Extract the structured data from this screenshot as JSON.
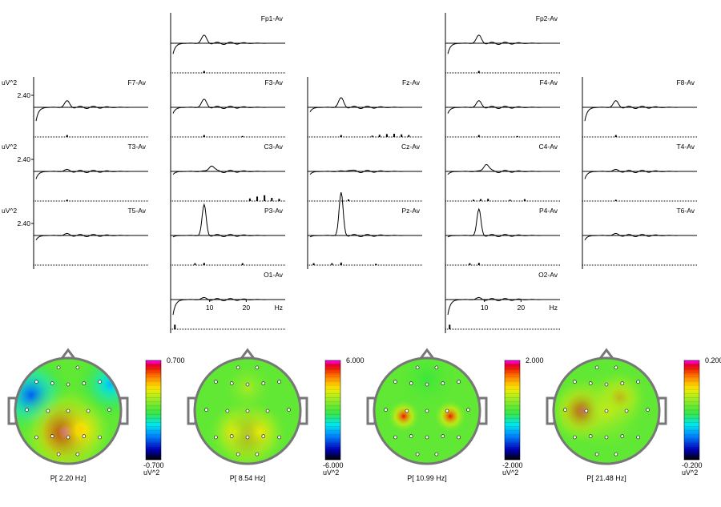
{
  "spectra": {
    "y_unit": "uV^2",
    "y_tick": "2.40",
    "x_unit": "Hz",
    "x_ticks": [
      10,
      20
    ],
    "x_range_hz": [
      0,
      30
    ],
    "channels": [
      {
        "name": "Fp1-Av",
        "peak_hz": 8.5,
        "peak": 0.25,
        "low_dip": 0.35,
        "bars": [
          [
            8.5,
            0.3
          ]
        ]
      },
      {
        "name": "Fp2-Av",
        "peak_hz": 8.5,
        "peak": 0.25,
        "low_dip": 0.35,
        "bars": [
          [
            8.5,
            0.3
          ]
        ]
      },
      {
        "name": "F7-Av",
        "peak_hz": 8.5,
        "peak": 0.2,
        "low_dip": 0.45,
        "bars": [
          [
            8.5,
            0.3
          ]
        ]
      },
      {
        "name": "F3-Av",
        "peak_hz": 8.5,
        "peak": 0.25,
        "low_dip": 0.2,
        "bars": [
          [
            8.5,
            0.3
          ],
          [
            19,
            0.15
          ]
        ]
      },
      {
        "name": "Fz-Av",
        "peak_hz": 8.5,
        "peak": 0.3,
        "low_dip": 0.15,
        "bars": [
          [
            8.5,
            0.3
          ],
          [
            17,
            0.2
          ],
          [
            19,
            0.35
          ],
          [
            21,
            0.45
          ],
          [
            23,
            0.5
          ],
          [
            25,
            0.4
          ],
          [
            27,
            0.3
          ]
        ]
      },
      {
        "name": "F4-Av",
        "peak_hz": 8.5,
        "peak": 0.2,
        "low_dip": 0.2,
        "bars": [
          [
            8.5,
            0.3
          ],
          [
            19,
            0.15
          ]
        ]
      },
      {
        "name": "F8-Av",
        "peak_hz": 8.5,
        "peak": 0.2,
        "low_dip": 0.45,
        "bars": [
          [
            8.5,
            0.3
          ]
        ]
      },
      {
        "name": "T3-Av",
        "peak_hz": 8.5,
        "peak": 0.05,
        "low_dip": 0.25,
        "bars": [
          [
            8.5,
            0.2
          ]
        ]
      },
      {
        "name": "C3-Av",
        "peak_hz": 10.5,
        "peak": 0.2,
        "low_dip": 0.1,
        "bars": [
          [
            21,
            0.4
          ],
          [
            23,
            0.7
          ],
          [
            25,
            0.9
          ],
          [
            27,
            0.5
          ],
          [
            29,
            0.35
          ]
        ]
      },
      {
        "name": "Cz-Av",
        "peak_hz": 10.5,
        "peak": 0.05,
        "low_dip": 0.1,
        "bars": [
          [
            10.5,
            0.25
          ]
        ]
      },
      {
        "name": "C4-Av",
        "peak_hz": 10.5,
        "peak": 0.25,
        "low_dip": 0.1,
        "bars": [
          [
            7,
            0.2
          ],
          [
            9,
            0.3
          ],
          [
            11,
            0.35
          ],
          [
            17,
            0.2
          ],
          [
            21,
            0.3
          ]
        ]
      },
      {
        "name": "T4-Av",
        "peak_hz": 8.5,
        "peak": 0.05,
        "low_dip": 0.25,
        "bars": [
          [
            8.5,
            0.2
          ]
        ]
      },
      {
        "name": "T5-Av",
        "peak_hz": 8.5,
        "peak": 0.05,
        "low_dip": 0.15,
        "bars": []
      },
      {
        "name": "P3-Av",
        "peak_hz": 8.5,
        "peak": 1.0,
        "low_dip": 0.05,
        "bars": [
          [
            6,
            0.3
          ],
          [
            8.5,
            0.35
          ],
          [
            19,
            0.3
          ]
        ]
      },
      {
        "name": "Pz-Av",
        "peak_hz": 8.5,
        "peak": 1.4,
        "low_dip": 0.05,
        "bars": [
          [
            1,
            0.3
          ],
          [
            6,
            0.3
          ],
          [
            8.5,
            0.4
          ],
          [
            18,
            0.2
          ]
        ]
      },
      {
        "name": "P4-Av",
        "peak_hz": 8.5,
        "peak": 0.85,
        "low_dip": 0.05,
        "bars": [
          [
            6,
            0.3
          ],
          [
            8.5,
            0.35
          ]
        ]
      },
      {
        "name": "T6-Av",
        "peak_hz": 8.5,
        "peak": 0.05,
        "low_dip": 0.15,
        "bars": []
      },
      {
        "name": "O1-Av",
        "peak_hz": 8.5,
        "peak": 0.05,
        "low_dip": 0.5,
        "bars": [
          [
            0.5,
            0.7
          ]
        ]
      },
      {
        "name": "O2-Av",
        "peak_hz": 8.5,
        "peak": 0.05,
        "low_dip": 0.5,
        "bars": [
          [
            0.5,
            0.7
          ]
        ]
      }
    ]
  },
  "topomaps": [
    {
      "label": "P[  2.20 Hz]",
      "max": "0.700",
      "min": "-0.700",
      "unit": "uV^2",
      "blobs": [
        [
          0.15,
          0.35,
          0.4,
          -0.6
        ],
        [
          0.9,
          0.25,
          0.35,
          -0.4
        ],
        [
          0.48,
          0.7,
          0.45,
          1.0
        ],
        [
          0.62,
          0.68,
          0.3,
          0.5
        ]
      ]
    },
    {
      "label": "P[  8.54 Hz]",
      "max": "6.000",
      "min": "-6.000",
      "unit": "uV^2",
      "blobs": [
        [
          0.5,
          0.72,
          0.35,
          0.95
        ],
        [
          0.38,
          0.7,
          0.28,
          0.4
        ],
        [
          0.62,
          0.7,
          0.28,
          0.4
        ],
        [
          0.5,
          0.28,
          0.25,
          0.25
        ]
      ]
    },
    {
      "label": "P[ 10.99 Hz]",
      "max": "2.000",
      "min": "-2.000",
      "unit": "uV^2",
      "blobs": [
        [
          0.28,
          0.55,
          0.16,
          0.85
        ],
        [
          0.72,
          0.55,
          0.16,
          0.85
        ],
        [
          0.5,
          0.2,
          0.3,
          -0.05
        ]
      ]
    },
    {
      "label": "P[ 21.48 Hz]",
      "max": "0.200",
      "min": "-0.200",
      "unit": "uV^2",
      "blobs": [
        [
          0.28,
          0.5,
          0.33,
          0.95
        ],
        [
          0.62,
          0.38,
          0.28,
          0.7
        ],
        [
          0.5,
          0.5,
          0.4,
          0.3
        ]
      ]
    }
  ],
  "chart_data": [
    {
      "type": "line",
      "x_unit": "Hz",
      "x_ticks": [
        10,
        20
      ],
      "y_unit": "uV^2",
      "y_tick": "2.40",
      "series": [
        {
          "name": "Fp1-Av"
        },
        {
          "name": "Fp2-Av"
        },
        {
          "name": "F7-Av"
        },
        {
          "name": "F3-Av"
        },
        {
          "name": "Fz-Av"
        },
        {
          "name": "F4-Av"
        },
        {
          "name": "F8-Av"
        },
        {
          "name": "T3-Av"
        },
        {
          "name": "C3-Av"
        },
        {
          "name": "Cz-Av"
        },
        {
          "name": "C4-Av"
        },
        {
          "name": "T4-Av"
        },
        {
          "name": "T5-Av"
        },
        {
          "name": "P3-Av"
        },
        {
          "name": "Pz-Av"
        },
        {
          "name": "P4-Av"
        },
        {
          "name": "T6-Av"
        },
        {
          "name": "O1-Av"
        },
        {
          "name": "O2-Av"
        }
      ]
    },
    {
      "type": "heatmap",
      "label": "P[  2.20 Hz]",
      "range": [
        -0.7,
        0.7
      ],
      "unit": "uV^2"
    },
    {
      "type": "heatmap",
      "label": "P[  8.54 Hz]",
      "range": [
        -6.0,
        6.0
      ],
      "unit": "uV^2"
    },
    {
      "type": "heatmap",
      "label": "P[ 10.99 Hz]",
      "range": [
        -2.0,
        2.0
      ],
      "unit": "uV^2"
    },
    {
      "type": "heatmap",
      "label": "P[ 21.48 Hz]",
      "range": [
        -0.2,
        0.2
      ],
      "unit": "uV^2"
    }
  ]
}
